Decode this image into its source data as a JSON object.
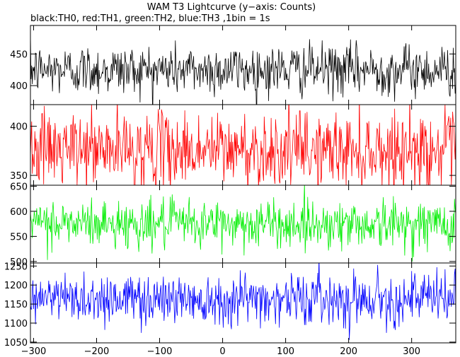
{
  "chart_data": {
    "type": "line",
    "title": "WAM T3 Lightcurve (y−axis: Counts)",
    "subtitle": "black:TH0, red:TH1, green:TH2, blue:TH3 ,1bin = 1s",
    "xlim": [
      -305,
      370
    ],
    "x_ticks": [
      -300,
      -200,
      -100,
      0,
      100,
      200,
      300
    ],
    "x_tick_labels": [
      "−300",
      "−200",
      "−100",
      "0",
      "100",
      "200",
      "300"
    ],
    "bin_seconds": 1,
    "grid": false,
    "panels": [
      {
        "series": "TH0",
        "color": "#000000",
        "ylim": [
          370,
          495
        ],
        "y_ticks": [
          400,
          450
        ],
        "mean": 425,
        "noise": 20
      },
      {
        "series": "TH1",
        "color": "#ff0000",
        "ylim": [
          340,
          422
        ],
        "y_ticks": [
          350,
          400
        ],
        "mean": 376,
        "noise": 19
      },
      {
        "series": "TH2",
        "color": "#00ee00",
        "ylim": [
          497,
          652
        ],
        "y_ticks": [
          500,
          550,
          600,
          650
        ],
        "mean": 575,
        "noise": 24
      },
      {
        "series": "TH3",
        "color": "#0000ff",
        "ylim": [
          1048,
          1258
        ],
        "y_ticks": [
          1050,
          1100,
          1150,
          1200,
          1250
        ],
        "mean": 1165,
        "noise": 34
      }
    ]
  }
}
